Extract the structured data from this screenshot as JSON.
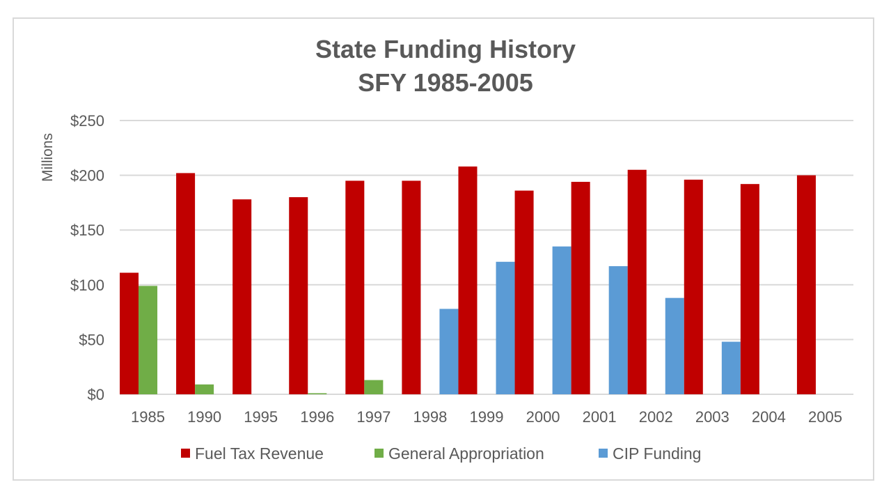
{
  "chart_data": {
    "type": "bar",
    "title": "State Funding History",
    "subtitle": "SFY 1985-2005",
    "xlabel": "",
    "ylabel": "Millions",
    "ylim": [
      0,
      250
    ],
    "yticks": [
      0,
      50,
      100,
      150,
      200,
      250
    ],
    "ytick_labels": [
      "$0",
      "$50",
      "$100",
      "$150",
      "$200",
      "$250"
    ],
    "grid": true,
    "legend_position": "bottom",
    "categories": [
      "1985",
      "1990",
      "1995",
      "1996",
      "1997",
      "1998",
      "1999",
      "2000",
      "2001",
      "2002",
      "2003",
      "2004",
      "2005"
    ],
    "series": [
      {
        "name": "Fuel Tax Revenue",
        "color": "#c00000",
        "values": [
          111,
          202,
          178,
          180,
          195,
          195,
          208,
          186,
          194,
          205,
          196,
          192,
          200
        ]
      },
      {
        "name": "General Appropriation",
        "color": "#70ad47",
        "values": [
          99,
          9,
          0,
          1,
          13,
          0,
          0,
          0,
          0,
          0,
          0,
          0,
          0
        ]
      },
      {
        "name": "CIP Funding",
        "color": "#5b9bd5",
        "values": [
          0,
          0,
          0,
          0,
          0,
          78,
          121,
          135,
          117,
          88,
          48,
          0,
          0
        ]
      }
    ]
  }
}
